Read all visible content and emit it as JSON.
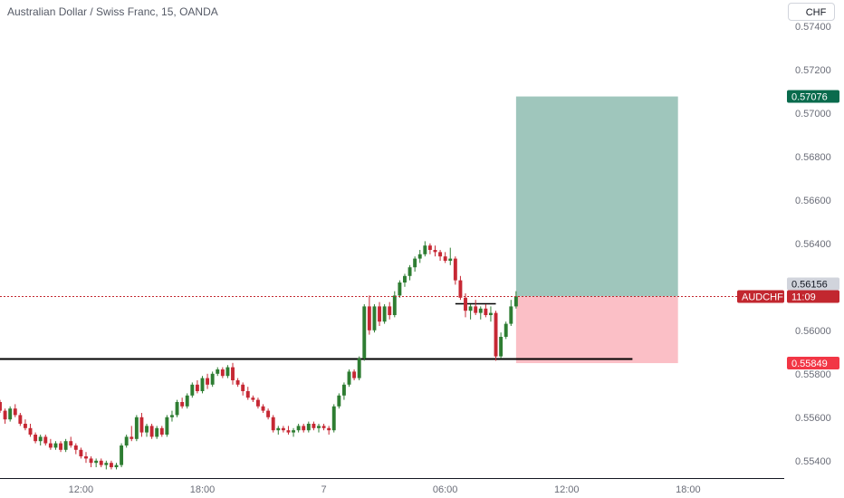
{
  "header": {
    "title": "Australian Dollar / Swiss Franc, 15, OANDA",
    "currency_button": "CHF"
  },
  "colors": {
    "up": "#2e7d32",
    "down": "#c62834",
    "target_zone": "#9fc6bc",
    "stop_zone": "#fbbfc6",
    "target_label": "#0a6b4d",
    "stop_label": "#f23645",
    "current_price_label": "#c2272f",
    "last_price_box": "#d1d4dc",
    "level_line": "#000000"
  },
  "chart_data": {
    "type": "candlestick",
    "symbol": "AUDCHF",
    "y_ticks": [
      "0.57400",
      "0.57200",
      "0.57000",
      "0.56800",
      "0.56600",
      "0.56400",
      "0.56000",
      "0.55800",
      "0.55600",
      "0.55400"
    ],
    "x_ticks": [
      {
        "label": "12:00",
        "t": 12
      },
      {
        "label": "18:00",
        "t": 18
      },
      {
        "label": "7",
        "t": 24
      },
      {
        "label": "06:00",
        "t": 30
      },
      {
        "label": "12:00",
        "t": 36
      },
      {
        "label": "18:00",
        "t": 42
      }
    ],
    "ylim": [
      0.5532,
      0.5752
    ],
    "xlim": [
      8.0,
      46.75
    ],
    "candles_ohlc": [
      [
        0.5565,
        0.5567,
        0.5563,
        0.5566
      ],
      [
        0.5566,
        0.5568,
        0.5564,
        0.5567
      ],
      [
        0.5567,
        0.5568,
        0.5562,
        0.5563
      ],
      [
        0.5563,
        0.5564,
        0.5557,
        0.5559
      ],
      [
        0.5559,
        0.5565,
        0.5558,
        0.5564
      ],
      [
        0.5564,
        0.5566,
        0.556,
        0.5561
      ],
      [
        0.5561,
        0.5562,
        0.5556,
        0.5557
      ],
      [
        0.5557,
        0.5559,
        0.5554,
        0.5555
      ],
      [
        0.5555,
        0.5557,
        0.5551,
        0.5552
      ],
      [
        0.5552,
        0.5553,
        0.5548,
        0.5549
      ],
      [
        0.5549,
        0.5552,
        0.5547,
        0.5551
      ],
      [
        0.5551,
        0.5552,
        0.5547,
        0.5548
      ],
      [
        0.5548,
        0.555,
        0.5545,
        0.5546
      ],
      [
        0.5546,
        0.5549,
        0.5545,
        0.5548
      ],
      [
        0.5548,
        0.5549,
        0.5544,
        0.5545
      ],
      [
        0.5545,
        0.555,
        0.5544,
        0.5549
      ],
      [
        0.5549,
        0.5551,
        0.5546,
        0.5547
      ],
      [
        0.5547,
        0.5548,
        0.5543,
        0.5545
      ],
      [
        0.5545,
        0.5546,
        0.5541,
        0.5542
      ],
      [
        0.5542,
        0.5544,
        0.5539,
        0.5541
      ],
      [
        0.5541,
        0.5542,
        0.5537,
        0.5539
      ],
      [
        0.5539,
        0.5541,
        0.5537,
        0.554
      ],
      [
        0.554,
        0.5541,
        0.5537,
        0.5538
      ],
      [
        0.5538,
        0.554,
        0.5536,
        0.5539
      ],
      [
        0.5539,
        0.554,
        0.5536,
        0.5537
      ],
      [
        0.5537,
        0.5539,
        0.5536,
        0.5538
      ],
      [
        0.5538,
        0.5548,
        0.5537,
        0.5547
      ],
      [
        0.5547,
        0.5552,
        0.5546,
        0.5551
      ],
      [
        0.5551,
        0.5556,
        0.5549,
        0.555
      ],
      [
        0.555,
        0.5561,
        0.5549,
        0.556
      ],
      [
        0.556,
        0.5562,
        0.5551,
        0.5553
      ],
      [
        0.5553,
        0.5557,
        0.5551,
        0.5556
      ],
      [
        0.5556,
        0.5557,
        0.555,
        0.5551
      ],
      [
        0.5551,
        0.5556,
        0.555,
        0.5555
      ],
      [
        0.5555,
        0.5556,
        0.5551,
        0.5552
      ],
      [
        0.5552,
        0.5561,
        0.5551,
        0.556
      ],
      [
        0.556,
        0.5563,
        0.5558,
        0.5561
      ],
      [
        0.5561,
        0.5568,
        0.556,
        0.5567
      ],
      [
        0.5567,
        0.5569,
        0.5564,
        0.5565
      ],
      [
        0.5565,
        0.5571,
        0.5564,
        0.557
      ],
      [
        0.557,
        0.5576,
        0.5569,
        0.5575
      ],
      [
        0.5575,
        0.5577,
        0.5571,
        0.5572
      ],
      [
        0.5572,
        0.5579,
        0.5571,
        0.5578
      ],
      [
        0.5578,
        0.558,
        0.5573,
        0.5575
      ],
      [
        0.5575,
        0.5581,
        0.5574,
        0.558
      ],
      [
        0.558,
        0.5583,
        0.5579,
        0.5582
      ],
      [
        0.5582,
        0.5583,
        0.5578,
        0.5579
      ],
      [
        0.5579,
        0.5584,
        0.5578,
        0.5583
      ],
      [
        0.5583,
        0.5585,
        0.5575,
        0.5577
      ],
      [
        0.5577,
        0.5578,
        0.5574,
        0.5575
      ],
      [
        0.5575,
        0.5576,
        0.557,
        0.5572
      ],
      [
        0.5572,
        0.5574,
        0.5568,
        0.5569
      ],
      [
        0.5569,
        0.557,
        0.5567,
        0.5568
      ],
      [
        0.5568,
        0.5569,
        0.5564,
        0.5565
      ],
      [
        0.5565,
        0.5566,
        0.5562,
        0.5563
      ],
      [
        0.5563,
        0.5564,
        0.5559,
        0.556
      ],
      [
        0.556,
        0.5561,
        0.5553,
        0.5554
      ],
      [
        0.5554,
        0.5556,
        0.5552,
        0.5555
      ],
      [
        0.5555,
        0.5556,
        0.5553,
        0.5554
      ],
      [
        0.5554,
        0.5556,
        0.5552,
        0.5553
      ],
      [
        0.5553,
        0.5555,
        0.5551,
        0.5554
      ],
      [
        0.5554,
        0.5557,
        0.5553,
        0.5556
      ],
      [
        0.5556,
        0.5557,
        0.5553,
        0.5554
      ],
      [
        0.5554,
        0.5558,
        0.5553,
        0.5557
      ],
      [
        0.5557,
        0.5558,
        0.5554,
        0.5555
      ],
      [
        0.5555,
        0.5557,
        0.5553,
        0.5556
      ],
      [
        0.5556,
        0.5557,
        0.5554,
        0.5555
      ],
      [
        0.5555,
        0.5556,
        0.5552,
        0.5554
      ],
      [
        0.5554,
        0.5566,
        0.5553,
        0.5565
      ],
      [
        0.5565,
        0.5571,
        0.5564,
        0.557
      ],
      [
        0.557,
        0.5576,
        0.5568,
        0.5575
      ],
      [
        0.5575,
        0.5582,
        0.5574,
        0.5581
      ],
      [
        0.5581,
        0.5582,
        0.5577,
        0.5578
      ],
      [
        0.5578,
        0.5588,
        0.5577,
        0.5587
      ],
      [
        0.5587,
        0.5612,
        0.5586,
        0.5611
      ],
      [
        0.5611,
        0.5616,
        0.5598,
        0.56
      ],
      [
        0.56,
        0.5612,
        0.5599,
        0.5611
      ],
      [
        0.5611,
        0.5613,
        0.5602,
        0.5604
      ],
      [
        0.5604,
        0.5612,
        0.5603,
        0.5611
      ],
      [
        0.5611,
        0.5613,
        0.5605,
        0.5607
      ],
      [
        0.5607,
        0.5618,
        0.5606,
        0.5616
      ],
      [
        0.5616,
        0.5623,
        0.5615,
        0.5622
      ],
      [
        0.5622,
        0.5626,
        0.562,
        0.5625
      ],
      [
        0.5625,
        0.563,
        0.5623,
        0.5629
      ],
      [
        0.5629,
        0.5634,
        0.5627,
        0.5633
      ],
      [
        0.5633,
        0.5637,
        0.5631,
        0.5635
      ],
      [
        0.5635,
        0.5641,
        0.5634,
        0.5639
      ],
      [
        0.5639,
        0.564,
        0.5635,
        0.5637
      ],
      [
        0.5637,
        0.5639,
        0.5634,
        0.5636
      ],
      [
        0.5636,
        0.5637,
        0.5632,
        0.5634
      ],
      [
        0.5634,
        0.5636,
        0.5631,
        0.5632
      ],
      [
        0.5632,
        0.5638,
        0.563,
        0.5633
      ],
      [
        0.5633,
        0.5634,
        0.5621,
        0.5623
      ],
      [
        0.5623,
        0.5625,
        0.5614,
        0.5615
      ],
      [
        0.5615,
        0.5617,
        0.5606,
        0.5609
      ],
      [
        0.5609,
        0.5612,
        0.5605,
        0.5611
      ],
      [
        0.5611,
        0.5614,
        0.5607,
        0.5608
      ],
      [
        0.5608,
        0.5611,
        0.5605,
        0.561
      ],
      [
        0.561,
        0.5612,
        0.5606,
        0.5607
      ],
      [
        0.5607,
        0.5611,
        0.5604,
        0.5608
      ],
      [
        0.5608,
        0.5609,
        0.5586,
        0.5588
      ],
      [
        0.5588,
        0.5599,
        0.5587,
        0.5597
      ],
      [
        0.5597,
        0.5604,
        0.5596,
        0.5603
      ],
      [
        0.5603,
        0.5614,
        0.5602,
        0.5611
      ],
      [
        0.5611,
        0.5618,
        0.561,
        0.56156
      ]
    ],
    "horizontal_levels": [
      {
        "price": 0.5587,
        "from_t": 8.0,
        "to_t": 39.25
      },
      {
        "price": 0.56124,
        "from_t": 30.5,
        "to_t": 32.5
      }
    ],
    "position": {
      "from_t": 33.5,
      "to_t": 41.5,
      "entry": 0.56156,
      "target": 0.57076,
      "stop": 0.55849
    },
    "current_price": {
      "value": "0.56156",
      "symbol": "AUDCHF",
      "countdown": "11:09"
    },
    "target_label": "0.57076",
    "stop_label": "0.55849"
  }
}
